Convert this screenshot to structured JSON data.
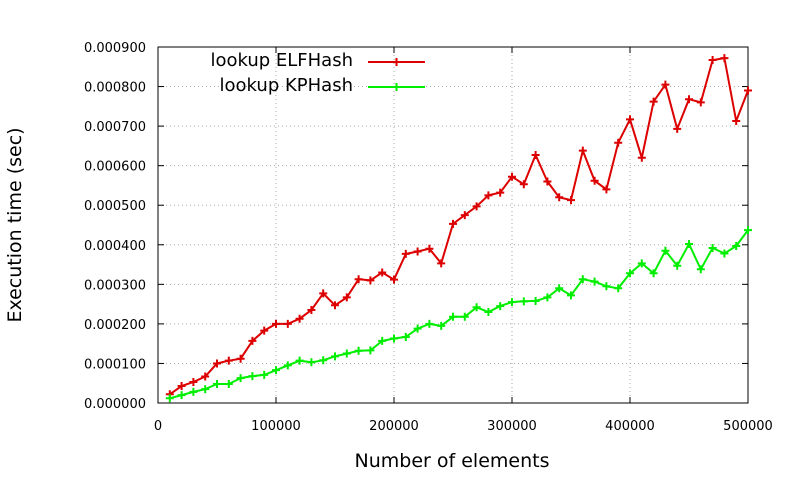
{
  "chart_data": {
    "type": "line",
    "title": "",
    "xlabel": "Number of elements",
    "ylabel": "Execution time (sec)",
    "xlim": [
      0,
      500000
    ],
    "ylim": [
      0,
      0.0009
    ],
    "x_ticks": [
      0,
      100000,
      200000,
      300000,
      400000,
      500000
    ],
    "x_tick_labels": [
      "0",
      "100000",
      "200000",
      "300000",
      "400000",
      "500000"
    ],
    "y_ticks": [
      0,
      0.0001,
      0.0002,
      0.0003,
      0.0004,
      0.0005,
      0.0006,
      0.0007,
      0.0008,
      0.0009
    ],
    "y_tick_labels": [
      "0.000000",
      "0.000100",
      "0.000200",
      "0.000300",
      "0.000400",
      "0.000500",
      "0.000600",
      "0.000700",
      "0.000800",
      "0.000900"
    ],
    "grid": true,
    "legend_position": "top-left",
    "x": [
      10000,
      20000,
      30000,
      40000,
      50000,
      60000,
      70000,
      80000,
      90000,
      100000,
      110000,
      120000,
      130000,
      140000,
      150000,
      160000,
      170000,
      180000,
      190000,
      200000,
      210000,
      220000,
      230000,
      240000,
      250000,
      260000,
      270000,
      280000,
      290000,
      300000,
      310000,
      320000,
      330000,
      340000,
      350000,
      360000,
      370000,
      380000,
      390000,
      400000,
      410000,
      420000,
      430000,
      440000,
      450000,
      460000,
      470000,
      480000,
      490000,
      500000
    ],
    "series": [
      {
        "name": "lookup ELFHash",
        "color": "#dd0000",
        "values": [
          2.2e-05,
          4.3e-05,
          5.3e-05,
          6.7e-05,
          0.0001,
          0.000107,
          0.000112,
          0.000157,
          0.000183,
          0.0002,
          0.0002,
          0.000213,
          0.000235,
          0.000277,
          0.000247,
          0.000267,
          0.000313,
          0.00031,
          0.00033,
          0.000312,
          0.000377,
          0.000383,
          0.00039,
          0.000353,
          0.000453,
          0.000475,
          0.000497,
          0.000525,
          0.000532,
          0.000572,
          0.000553,
          0.000627,
          0.00056,
          0.00052,
          0.000513,
          0.000638,
          0.000562,
          0.00054,
          0.000658,
          0.000717,
          0.00062,
          0.000762,
          0.000805,
          0.000693,
          0.000768,
          0.00076,
          0.000867,
          0.000872,
          0.000713,
          0.00079
        ]
      },
      {
        "name": "lookup KPHash",
        "color": "#00ee00",
        "values": [
          1.2e-05,
          2e-05,
          2.8e-05,
          3.5e-05,
          4.8e-05,
          4.8e-05,
          6.3e-05,
          6.8e-05,
          7.1e-05,
          8.3e-05,
          9.5e-05,
          0.000107,
          0.000103,
          0.000108,
          0.000118,
          0.000125,
          0.000132,
          0.000133,
          0.000157,
          0.000163,
          0.000167,
          0.000188,
          0.0002,
          0.000195,
          0.000218,
          0.000218,
          0.000242,
          0.00023,
          0.000245,
          0.000255,
          0.000257,
          0.000258,
          0.000267,
          0.00029,
          0.000272,
          0.000313,
          0.000307,
          0.000295,
          0.00029,
          0.000328,
          0.000353,
          0.000328,
          0.000385,
          0.000347,
          0.000402,
          0.000338,
          0.000392,
          0.000378,
          0.000397,
          0.000437
        ]
      }
    ]
  }
}
